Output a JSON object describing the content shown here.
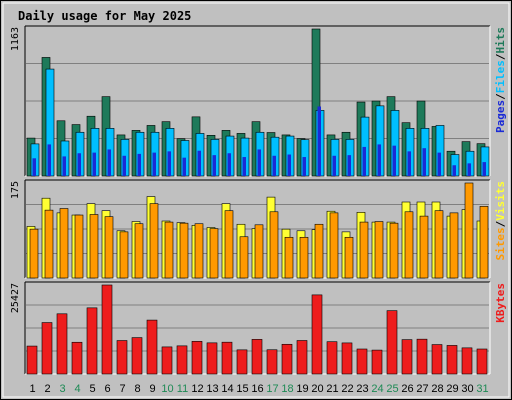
{
  "title": "Daily usage for May 2025",
  "colors": {
    "hits": "#1e7a5a",
    "files": "#00bfff",
    "pages": "#1a2bd6",
    "visits": "#ffff33",
    "sites": "#ff9900",
    "kbytes": "#ee1c1c",
    "weekend": "#1e8a55",
    "title": "#0000cc",
    "panel": "#c0c0c0"
  },
  "chart_data": [
    {
      "type": "bar",
      "panel": "hits-files-pages",
      "ymax_label": "1163",
      "legend": [
        "Pages",
        "/",
        "Files",
        "/",
        "Hits"
      ],
      "categories": [
        "1",
        "2",
        "3",
        "4",
        "5",
        "6",
        "7",
        "8",
        "9",
        "10",
        "11",
        "12",
        "13",
        "14",
        "15",
        "16",
        "17",
        "18",
        "19",
        "20",
        "21",
        "22",
        "23",
        "24",
        "25",
        "26",
        "27",
        "28",
        "29",
        "30",
        "31"
      ],
      "weekend_days": [
        "3",
        "4",
        "10",
        "11",
        "17",
        "18",
        "24",
        "25",
        "31"
      ],
      "ylim": [
        0,
        1163
      ],
      "series": [
        {
          "name": "Hits",
          "values": [
            300,
            938,
            437,
            407,
            473,
            628,
            325,
            361,
            400,
            430,
            295,
            468,
            322,
            361,
            337,
            430,
            344,
            325,
            296,
            1163,
            325,
            346,
            585,
            593,
            628,
            422,
            593,
            392,
            196,
            272,
            256
          ]
        },
        {
          "name": "Files",
          "values": [
            254,
            846,
            277,
            346,
            377,
            377,
            290,
            346,
            346,
            377,
            281,
            337,
            290,
            316,
            300,
            346,
            307,
            316,
            288,
            519,
            290,
            290,
            466,
            555,
            519,
            377,
            377,
            400,
            170,
            196,
            230
          ]
        },
        {
          "name": "Pages",
          "values": [
            140,
            250,
            155,
            180,
            185,
            210,
            160,
            175,
            185,
            195,
            145,
            200,
            165,
            180,
            150,
            210,
            160,
            170,
            150,
            550,
            160,
            165,
            230,
            250,
            240,
            195,
            220,
            185,
            85,
            100,
            110
          ]
        }
      ]
    },
    {
      "type": "bar",
      "panel": "visits-sites",
      "ymax_label": "175",
      "legend": [
        "Sites",
        "/",
        "Visits"
      ],
      "categories": [
        "1",
        "2",
        "3",
        "4",
        "5",
        "6",
        "7",
        "8",
        "9",
        "10",
        "11",
        "12",
        "13",
        "14",
        "15",
        "16",
        "17",
        "18",
        "19",
        "20",
        "21",
        "22",
        "23",
        "24",
        "25",
        "26",
        "27",
        "28",
        "29",
        "30",
        "31"
      ],
      "ylim": [
        0,
        175
      ],
      "series": [
        {
          "name": "Visits",
          "values": [
            95,
            147,
            120,
            116,
            137,
            124,
            87,
            104,
            150,
            105,
            102,
            97,
            93,
            137,
            99,
            91,
            149,
            90,
            87,
            89,
            123,
            85,
            121,
            103,
            103,
            140,
            140,
            140,
            114,
            126,
            105
          ]
        },
        {
          "name": "Sites",
          "values": [
            90,
            125,
            128,
            116,
            117,
            113,
            85,
            100,
            137,
            103,
            101,
            100,
            91,
            124,
            76,
            98,
            122,
            75,
            75,
            99,
            120,
            75,
            103,
            104,
            101,
            122,
            114,
            124,
            120,
            175,
            132
          ]
        }
      ]
    },
    {
      "type": "bar",
      "panel": "kbytes",
      "ymax_label": "25427",
      "legend": [
        "KBytes"
      ],
      "categories": [
        "1",
        "2",
        "3",
        "4",
        "5",
        "6",
        "7",
        "8",
        "9",
        "10",
        "11",
        "12",
        "13",
        "14",
        "15",
        "16",
        "17",
        "18",
        "19",
        "20",
        "21",
        "22",
        "23",
        "24",
        "25",
        "26",
        "27",
        "28",
        "29",
        "30",
        "31"
      ],
      "ylim": [
        0,
        25427
      ],
      "series": [
        {
          "name": "KBytes",
          "values": [
            7980,
            14700,
            17200,
            9070,
            18900,
            25427,
            9560,
            10400,
            15400,
            7740,
            8040,
            9330,
            8900,
            9090,
            6900,
            9890,
            6930,
            8490,
            9570,
            22600,
            9230,
            8880,
            7140,
            6830,
            18100,
            9820,
            9950,
            8410,
            8160,
            7470,
            7140
          ]
        }
      ]
    }
  ]
}
